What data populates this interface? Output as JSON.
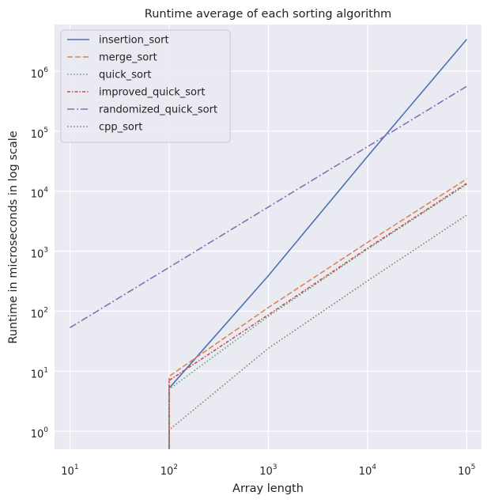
{
  "chart_data": {
    "type": "line",
    "title": "Runtime average of each sorting algorithm",
    "xlabel": "Array length",
    "ylabel": "Runtime in microseconds in log scale",
    "xscale": "log",
    "yscale": "log",
    "xlim": [
      7,
      141000
    ],
    "ylim": [
      0.5,
      6000000
    ],
    "xticks": [
      {
        "value": 10,
        "base": "10",
        "exp": "1"
      },
      {
        "value": 100,
        "base": "10",
        "exp": "2"
      },
      {
        "value": 1000,
        "base": "10",
        "exp": "3"
      },
      {
        "value": 10000,
        "base": "10",
        "exp": "4"
      },
      {
        "value": 100000,
        "base": "10",
        "exp": "5"
      }
    ],
    "yticks": [
      {
        "value": 1,
        "base": "10",
        "exp": "0"
      },
      {
        "value": 10,
        "base": "10",
        "exp": "1"
      },
      {
        "value": 100,
        "base": "10",
        "exp": "2"
      },
      {
        "value": 1000,
        "base": "10",
        "exp": "3"
      },
      {
        "value": 10000,
        "base": "10",
        "exp": "4"
      },
      {
        "value": 100000,
        "base": "10",
        "exp": "5"
      },
      {
        "value": 1000000,
        "base": "10",
        "exp": "6"
      }
    ],
    "grid": true,
    "legend_position": "top-left",
    "series": [
      {
        "name": "insertion_sort",
        "color": "#4c72b0",
        "dash": "solid",
        "points": [
          [
            100,
            0.3
          ],
          [
            100,
            5.2
          ],
          [
            1000,
            390
          ],
          [
            10000,
            38000
          ],
          [
            100000,
            3400000
          ]
        ]
      },
      {
        "name": "merge_sort",
        "color": "#dd8452",
        "dash": "dashed",
        "points": [
          [
            100,
            0.3
          ],
          [
            100,
            8.2
          ],
          [
            1000,
            115
          ],
          [
            10000,
            1400
          ],
          [
            100000,
            16000
          ]
        ]
      },
      {
        "name": "quick_sort",
        "color": "#55a868",
        "dash": "dotted",
        "points": [
          [
            100,
            0.3
          ],
          [
            100,
            5.0
          ],
          [
            1000,
            82
          ],
          [
            10000,
            1080
          ],
          [
            100000,
            13000
          ]
        ]
      },
      {
        "name": "improved_quick_sort",
        "color": "#c44e52",
        "dash": "dashdot-short",
        "points": [
          [
            100,
            0.3
          ],
          [
            100,
            7.0
          ],
          [
            1000,
            87
          ],
          [
            10000,
            1120
          ],
          [
            100000,
            13500
          ]
        ]
      },
      {
        "name": "randomized_quick_sort",
        "color": "#8172b3",
        "dash": "dashdot",
        "points": [
          [
            10,
            53
          ],
          [
            100000,
            560000
          ]
        ]
      },
      {
        "name": "cpp_sort",
        "color": "#937860",
        "dash": "dotted",
        "points": [
          [
            100,
            0.3
          ],
          [
            100,
            1.05
          ],
          [
            1000,
            24
          ],
          [
            10000,
            320
          ],
          [
            100000,
            4000
          ]
        ]
      }
    ]
  }
}
